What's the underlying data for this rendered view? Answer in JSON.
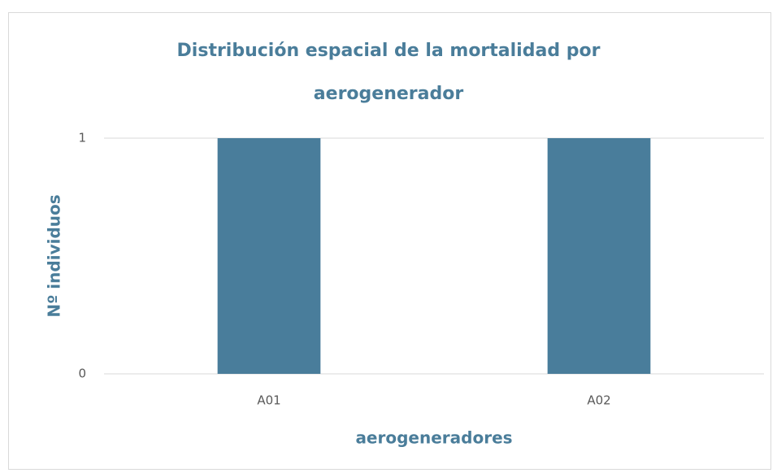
{
  "chart_data": {
    "type": "bar",
    "title": "Distribución espacial de la mortalidad por aerogenerador",
    "categories": [
      "A01",
      "A02"
    ],
    "values": [
      1,
      1
    ],
    "color": "#497d9b",
    "ylim": [
      0,
      1
    ],
    "yticks": [
      0,
      1
    ],
    "grid": true,
    "xlabel": "aerogeneradores",
    "ylabel": "Nº individuos"
  }
}
